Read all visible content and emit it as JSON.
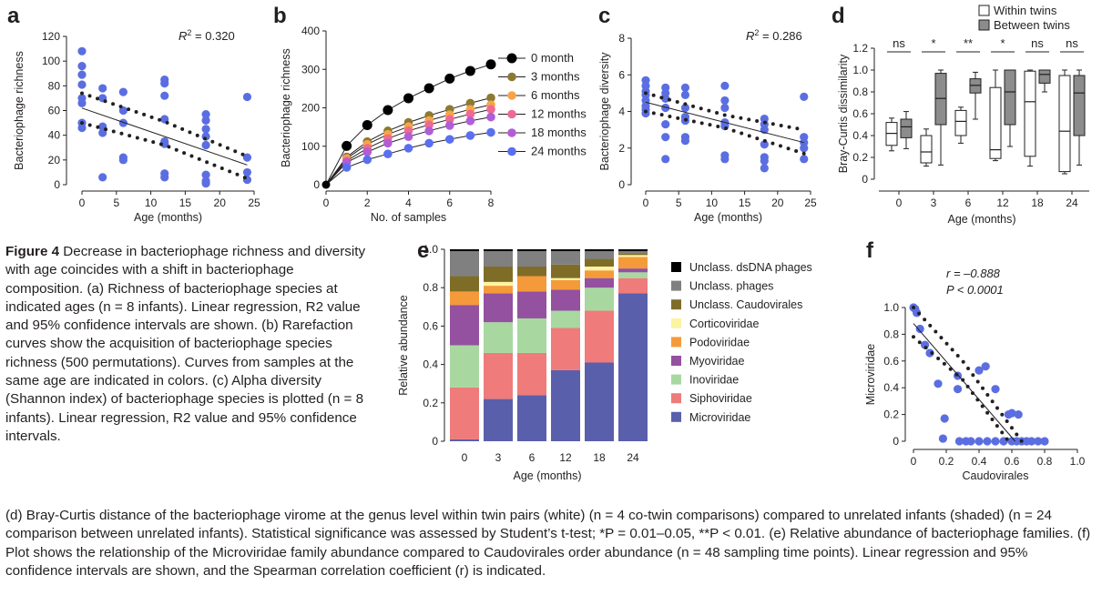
{
  "colors": {
    "dots": "#5b6ee1",
    "ink": "#231f20",
    "month_series": [
      "#000000",
      "#8b7a32",
      "#f7a448",
      "#ef6a93",
      "#b15ed6",
      "#5a6ff0"
    ],
    "families": {
      "Unclass. dsDNA phages": "#000000",
      "Unclass. phages": "#808080",
      "Unclass. Caudovirales": "#7f6d27",
      "Corticoviridae": "#fbf4a3",
      "Podoviridae": "#f59a3a",
      "Myoviridae": "#93519f",
      "Inoviridae": "#a8d8a0",
      "Siphoviridae": "#ef7b7b",
      "Microviridae": "#5a5fab"
    }
  },
  "panels": {
    "a": {
      "letter": "a",
      "r2_label": "R",
      "r2_sup": "2",
      "r2_value": " = 0.320"
    },
    "b": {
      "letter": "b"
    },
    "c": {
      "letter": "c",
      "r2_label": "R",
      "r2_sup": "2",
      "r2_value": " = 0.286"
    },
    "d": {
      "letter": "d",
      "legend": [
        "Within twins",
        "Between twins"
      ],
      "significance": [
        "ns",
        "*",
        "**",
        "*",
        "ns",
        "ns"
      ]
    },
    "e": {
      "letter": "e"
    },
    "f": {
      "letter": "f",
      "r_label": "r = –0.888",
      "p_label": "P < 0.0001"
    }
  },
  "chart_data": [
    {
      "panel": "a",
      "type": "scatter",
      "xlabel": "Age (months)",
      "ylabel": "Bacteriophage richness",
      "xlim": [
        0,
        25
      ],
      "ylim": [
        0,
        120
      ],
      "xticks": [
        0,
        5,
        10,
        15,
        20,
        25
      ],
      "yticks": [
        0,
        20,
        40,
        60,
        80,
        100,
        120
      ],
      "points": [
        [
          0,
          108
        ],
        [
          0,
          96
        ],
        [
          0,
          89
        ],
        [
          0,
          81
        ],
        [
          0,
          70
        ],
        [
          0,
          66
        ],
        [
          0,
          50
        ],
        [
          0,
          46
        ],
        [
          3,
          78
        ],
        [
          3,
          70
        ],
        [
          3,
          47
        ],
        [
          3,
          42
        ],
        [
          3,
          6
        ],
        [
          6,
          75
        ],
        [
          6,
          60
        ],
        [
          6,
          50
        ],
        [
          6,
          22
        ],
        [
          6,
          20
        ],
        [
          12,
          85
        ],
        [
          12,
          82
        ],
        [
          12,
          72
        ],
        [
          12,
          53
        ],
        [
          12,
          35
        ],
        [
          12,
          33
        ],
        [
          12,
          9
        ],
        [
          12,
          6
        ],
        [
          18,
          57
        ],
        [
          18,
          52
        ],
        [
          18,
          45
        ],
        [
          18,
          39
        ],
        [
          18,
          32
        ],
        [
          18,
          8
        ],
        [
          18,
          3
        ],
        [
          18,
          1
        ],
        [
          24,
          71
        ],
        [
          24,
          22
        ],
        [
          24,
          10
        ],
        [
          24,
          4
        ]
      ],
      "regression": [
        [
          0,
          62
        ],
        [
          24,
          16
        ]
      ],
      "ci_upper": [
        [
          0,
          74
        ],
        [
          12,
          51
        ],
        [
          24,
          23
        ]
      ],
      "ci_lower": [
        [
          0,
          50
        ],
        [
          12,
          32
        ],
        [
          24,
          5
        ]
      ]
    },
    {
      "panel": "b",
      "type": "line",
      "xlabel": "No. of samples",
      "ylabel": "Bacteriophage richness",
      "xlim": [
        0,
        8
      ],
      "ylim": [
        0,
        400
      ],
      "xticks": [
        0,
        2,
        4,
        6,
        8
      ],
      "yticks": [
        0,
        100,
        200,
        300,
        400
      ],
      "x": [
        0,
        1,
        2,
        3,
        4,
        5,
        6,
        7,
        8
      ],
      "series": [
        {
          "name": "0 month",
          "values": [
            0,
            101,
            155,
            194,
            225,
            251,
            276,
            296,
            313
          ]
        },
        {
          "name": "3 months",
          "values": [
            0,
            72,
            112,
            140,
            162,
            180,
            196,
            212,
            226
          ]
        },
        {
          "name": "6 months",
          "values": [
            0,
            68,
            105,
            131,
            151,
            167,
            182,
            196,
            208
          ]
        },
        {
          "name": "12 months",
          "values": [
            0,
            62,
            95,
            120,
            140,
            156,
            170,
            184,
            196
          ]
        },
        {
          "name": "18 months",
          "values": [
            0,
            58,
            85,
            108,
            125,
            140,
            154,
            166,
            176
          ]
        },
        {
          "name": "24 months",
          "values": [
            0,
            45,
            65,
            80,
            95,
            108,
            118,
            128,
            136
          ]
        }
      ]
    },
    {
      "panel": "c",
      "type": "scatter",
      "xlabel": "Age (months)",
      "ylabel": "Bacteriophage diversity",
      "xlim": [
        0,
        25
      ],
      "ylim": [
        0,
        8
      ],
      "xticks": [
        0,
        5,
        10,
        15,
        20,
        25
      ],
      "yticks": [
        0,
        2,
        4,
        6,
        8
      ],
      "points": [
        [
          0,
          5.7
        ],
        [
          0,
          5.4
        ],
        [
          0,
          5.1
        ],
        [
          0,
          4.9
        ],
        [
          0,
          4.6
        ],
        [
          0,
          4.3
        ],
        [
          0,
          4.1
        ],
        [
          0,
          3.9
        ],
        [
          3,
          5.3
        ],
        [
          3,
          5.0
        ],
        [
          3,
          4.7
        ],
        [
          3,
          4.2
        ],
        [
          3,
          3.3
        ],
        [
          3,
          2.6
        ],
        [
          3,
          1.4
        ],
        [
          6,
          5.3
        ],
        [
          6,
          4.9
        ],
        [
          6,
          4.2
        ],
        [
          6,
          3.7
        ],
        [
          6,
          3.5
        ],
        [
          6,
          2.6
        ],
        [
          6,
          2.4
        ],
        [
          12,
          5.4
        ],
        [
          12,
          4.6
        ],
        [
          12,
          4.2
        ],
        [
          12,
          3.4
        ],
        [
          12,
          3.2
        ],
        [
          12,
          1.6
        ],
        [
          12,
          1.4
        ],
        [
          18,
          3.6
        ],
        [
          18,
          3.3
        ],
        [
          18,
          3.0
        ],
        [
          18,
          2.2
        ],
        [
          18,
          1.5
        ],
        [
          18,
          1.3
        ],
        [
          18,
          0.9
        ],
        [
          24,
          4.8
        ],
        [
          24,
          2.6
        ],
        [
          24,
          2.3
        ],
        [
          24,
          2.0
        ],
        [
          24,
          1.4
        ]
      ],
      "regression": [
        [
          0,
          4.5
        ],
        [
          24,
          2.3
        ]
      ],
      "ci_upper": [
        [
          0,
          5.0
        ],
        [
          12,
          3.8
        ],
        [
          24,
          3.0
        ]
      ],
      "ci_lower": [
        [
          0,
          4.0
        ],
        [
          12,
          3.1
        ],
        [
          24,
          1.7
        ]
      ]
    },
    {
      "panel": "d",
      "type": "box",
      "xlabel": "Age (months)",
      "ylabel": "Bray-Curtis dissimilarity",
      "ylim": [
        0,
        1.2
      ],
      "yticks": [
        0,
        0.2,
        0.4,
        0.6,
        0.8,
        1.0,
        1.2
      ],
      "categories": [
        "0",
        "3",
        "6",
        "12",
        "18",
        "24"
      ],
      "series": [
        {
          "name": "Within twins",
          "boxes": [
            {
              "min": 0.26,
              "q1": 0.31,
              "median": 0.42,
              "q3": 0.52,
              "max": 0.56
            },
            {
              "min": 0.12,
              "q1": 0.15,
              "median": 0.25,
              "q3": 0.4,
              "max": 0.46
            },
            {
              "min": 0.33,
              "q1": 0.4,
              "median": 0.53,
              "q3": 0.63,
              "max": 0.66
            },
            {
              "min": 0.17,
              "q1": 0.19,
              "median": 0.27,
              "q3": 0.84,
              "max": 1.0
            },
            {
              "min": 0.12,
              "q1": 0.21,
              "median": 0.71,
              "q3": 0.99,
              "max": 1.0
            },
            {
              "min": 0.05,
              "q1": 0.07,
              "median": 0.44,
              "q3": 0.95,
              "max": 1.0
            }
          ]
        },
        {
          "name": "Between twins",
          "boxes": [
            {
              "min": 0.28,
              "q1": 0.38,
              "median": 0.48,
              "q3": 0.55,
              "max": 0.62
            },
            {
              "min": 0.13,
              "q1": 0.5,
              "median": 0.74,
              "q3": 0.97,
              "max": 1.0
            },
            {
              "min": 0.55,
              "q1": 0.79,
              "median": 0.86,
              "q3": 0.92,
              "max": 0.98
            },
            {
              "min": 0.3,
              "q1": 0.5,
              "median": 0.8,
              "q3": 1.0,
              "max": 1.0
            },
            {
              "min": 0.8,
              "q1": 0.88,
              "median": 0.96,
              "q3": 1.0,
              "max": 1.0
            },
            {
              "min": 0.13,
              "q1": 0.4,
              "median": 0.79,
              "q3": 0.95,
              "max": 1.0
            }
          ]
        }
      ]
    },
    {
      "panel": "e",
      "type": "bar",
      "stacked": true,
      "xlabel": "Age (months)",
      "ylabel": "Relative abundance",
      "ylim": [
        0,
        1.0
      ],
      "yticks": [
        0,
        0.2,
        0.4,
        0.6,
        0.8,
        1.0
      ],
      "categories": [
        "0",
        "3",
        "6",
        "12",
        "18",
        "24"
      ],
      "series": [
        {
          "name": "Microviridae",
          "values": [
            0.01,
            0.22,
            0.24,
            0.37,
            0.41,
            0.77
          ]
        },
        {
          "name": "Siphoviridae",
          "values": [
            0.27,
            0.24,
            0.22,
            0.22,
            0.27,
            0.08
          ]
        },
        {
          "name": "Inoviridae",
          "values": [
            0.22,
            0.16,
            0.18,
            0.09,
            0.12,
            0.03
          ]
        },
        {
          "name": "Myoviridae",
          "values": [
            0.21,
            0.15,
            0.14,
            0.11,
            0.05,
            0.02
          ]
        },
        {
          "name": "Podoviridae",
          "values": [
            0.07,
            0.04,
            0.08,
            0.05,
            0.04,
            0.06
          ]
        },
        {
          "name": "Corticoviridae",
          "values": [
            0.0,
            0.02,
            0.0,
            0.01,
            0.02,
            0.01
          ]
        },
        {
          "name": "Unclass. Caudovirales",
          "values": [
            0.08,
            0.08,
            0.05,
            0.07,
            0.04,
            0.01
          ]
        },
        {
          "name": "Unclass. phages",
          "values": [
            0.13,
            0.08,
            0.08,
            0.07,
            0.04,
            0.01
          ]
        },
        {
          "name": "Unclass. dsDNA phages",
          "values": [
            0.01,
            0.01,
            0.01,
            0.01,
            0.01,
            0.01
          ]
        }
      ],
      "legend_order": [
        "Unclass. dsDNA phages",
        "Unclass. phages",
        "Unclass. Caudovirales",
        "Corticoviridae",
        "Podoviridae",
        "Myoviridae",
        "Inoviridae",
        "Siphoviridae",
        "Microviridae"
      ]
    },
    {
      "panel": "f",
      "type": "scatter",
      "xlabel": "Caudovirales",
      "ylabel": "Microviridae",
      "xlim": [
        0,
        1.0
      ],
      "ylim": [
        0,
        1.0
      ],
      "xticks": [
        0,
        0.2,
        0.4,
        0.6,
        0.8,
        1.0
      ],
      "yticks": [
        0,
        0.2,
        0.4,
        0.6,
        0.8,
        1.0
      ],
      "points": [
        [
          0.0,
          1.0
        ],
        [
          0.01,
          0.99
        ],
        [
          0.02,
          0.96
        ],
        [
          0.04,
          0.84
        ],
        [
          0.07,
          0.72
        ],
        [
          0.1,
          0.66
        ],
        [
          0.15,
          0.43
        ],
        [
          0.19,
          0.17
        ],
        [
          0.27,
          0.49
        ],
        [
          0.27,
          0.39
        ],
        [
          0.32,
          0.0
        ],
        [
          0.4,
          0.53
        ],
        [
          0.44,
          0.56
        ],
        [
          0.5,
          0.39
        ],
        [
          0.58,
          0.2
        ],
        [
          0.6,
          0.21
        ],
        [
          0.64,
          0.2
        ],
        [
          0.18,
          0.02
        ],
        [
          0.28,
          0.0
        ],
        [
          0.35,
          0.0
        ],
        [
          0.4,
          0.0
        ],
        [
          0.45,
          0.0
        ],
        [
          0.5,
          0.0
        ],
        [
          0.55,
          0.0
        ],
        [
          0.6,
          0.0
        ],
        [
          0.63,
          0.0
        ],
        [
          0.66,
          0.0
        ],
        [
          0.69,
          0.0
        ],
        [
          0.72,
          0.0
        ],
        [
          0.76,
          0.0
        ],
        [
          0.8,
          0.0
        ]
      ],
      "regression": [
        [
          0,
          0.88
        ],
        [
          0.62,
          0
        ]
      ],
      "ci_upper": [
        [
          0,
          1.0
        ],
        [
          0.3,
          0.6
        ],
        [
          0.66,
          0.0
        ]
      ],
      "ci_lower": [
        [
          0,
          0.78
        ],
        [
          0.3,
          0.46
        ],
        [
          0.58,
          0.0
        ]
      ]
    }
  ],
  "caption": {
    "left": [
      {
        "label": "Figure 4",
        "text": "  Decrease in bacteriophage richness and diversity with age coincides with a shift in bacteriophage composition. (a) Richness of bacteriophage species at indicated ages (n = 8 infants). Linear regression, R2 value and 95% confidence intervals are shown. (b) Rarefaction curves show the acquisition of bacteriophage species richness (500 permutations). Curves from samples at the same age are indicated in colors. (c) Alpha diversity (Shannon index) of bacteriophage species is plotted (n = 8 infants). Linear regression, R2 value and 95% confidence intervals."
      }
    ],
    "bottom": "(d) Bray-Curtis distance of the bacteriophage virome at the genus level within twin pairs (white) (n = 4 co-twin comparisons) compared to unrelated infants (shaded) (n = 24 comparison between unrelated infants). Statistical significance was assessed by Student’s t-test; *P = 0.01–0.05, **P < 0.01. (e) Relative abundance of bacteriophage families. (f) Plot shows the relationship of the Microviridae family abundance compared to Caudovirales order abundance (n = 48 sampling time points). Linear regression and 95% confidence intervals are shown, and the Spearman correlation coefficient (r) is indicated."
  }
}
